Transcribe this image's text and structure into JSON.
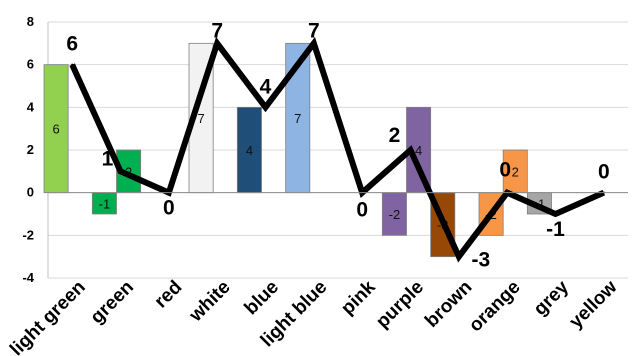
{
  "chart_data": {
    "type": "bar",
    "categories": [
      "light green",
      "green",
      "red",
      "white",
      "blue",
      "light blue",
      "pink",
      "purple",
      "brown",
      "orange",
      "grey",
      "yellow"
    ],
    "ylim": [
      -4,
      8
    ],
    "yticks": [
      -4,
      -2,
      0,
      2,
      4,
      6,
      8
    ],
    "grid": true,
    "legend": "none",
    "series": [
      {
        "type": "bar",
        "values": [
          6,
          -1,
          null,
          7,
          4,
          7,
          null,
          -2,
          -3,
          -2,
          -1,
          null
        ],
        "colors": [
          "#92d050",
          "#00b050",
          null,
          "#f2f2f2",
          "#1f4e79",
          "#8db4e2",
          null,
          "#8064a2",
          "#974706",
          "#f79646",
          "#a6a6a6",
          null
        ]
      },
      {
        "type": "bar",
        "values": [
          null,
          2,
          null,
          null,
          null,
          null,
          null,
          4,
          null,
          2,
          null,
          null
        ],
        "colors": [
          null,
          "#00b050",
          null,
          null,
          null,
          null,
          null,
          "#8064a2",
          null,
          "#f79646",
          null,
          null
        ]
      },
      {
        "type": "line",
        "color": "#000000",
        "values": [
          6,
          1,
          0,
          7,
          4,
          7,
          0,
          2,
          -3,
          0,
          -1,
          0
        ]
      }
    ]
  }
}
